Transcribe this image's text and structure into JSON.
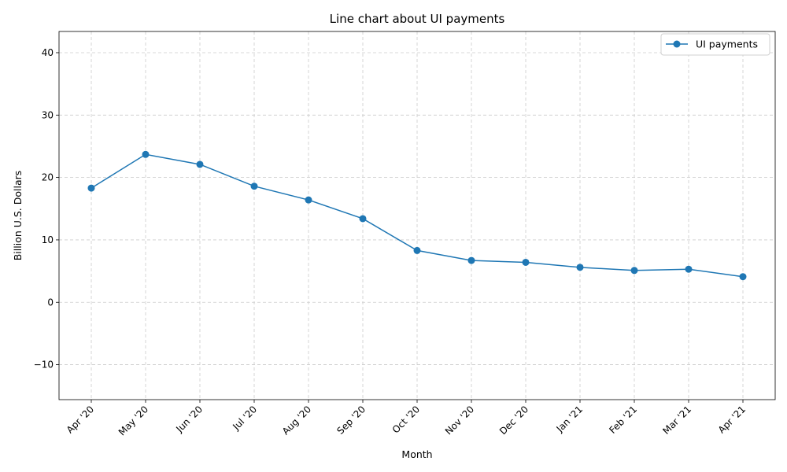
{
  "colors": {
    "series": "#1f77b4",
    "grid": "#cccccc",
    "axis": "#000000",
    "background": "#ffffff"
  },
  "chart_data": {
    "type": "line",
    "title": "Line chart about UI payments",
    "xlabel": "Month",
    "ylabel": "Billion U.S. Dollars",
    "categories": [
      "Apr '20",
      "May '20",
      "Jun '20",
      "Jul '20",
      "Aug '20",
      "Sep '20",
      "Oct '20",
      "Nov '20",
      "Dec '20",
      "Jan '21",
      "Feb '21",
      "Mar '21",
      "Apr '21"
    ],
    "series": [
      {
        "name": "UI payments",
        "values": [
          18.3,
          23.7,
          22.1,
          18.6,
          16.4,
          13.4,
          8.3,
          6.7,
          6.4,
          5.6,
          5.1,
          5.3,
          4.1
        ]
      }
    ],
    "ylim": [
      -15.6,
      43.4
    ],
    "yticks": [
      -10,
      0,
      10,
      20,
      30,
      40
    ],
    "ytick_labels": [
      "−10",
      "0",
      "10",
      "20",
      "30",
      "40"
    ],
    "grid": true,
    "legend_position": "top-right",
    "marker": "circle"
  }
}
